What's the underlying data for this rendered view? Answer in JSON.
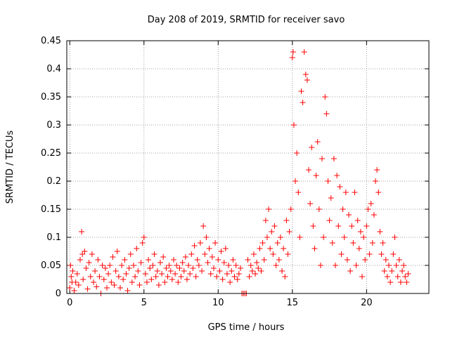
{
  "chart_data": {
    "type": "scatter",
    "title": "Day 208 of 2019, SRMTID for receiver savo",
    "xlabel": "GPS time / hours",
    "ylabel": "SRMTID / TECUs",
    "xlim": [
      -0.2,
      24.2
    ],
    "ylim": [
      0,
      0.45
    ],
    "xticks": [
      0,
      5,
      10,
      15,
      20
    ],
    "xtick_labels": [
      "0",
      "5",
      "10",
      "15",
      "20"
    ],
    "yticks": [
      0,
      0.05,
      0.1,
      0.15,
      0.2,
      0.25,
      0.3,
      0.35,
      0.4,
      0.45
    ],
    "ytick_labels": [
      "0",
      "0.05",
      "0.1",
      "0.15",
      "0.2",
      "0.25",
      "0.3",
      "0.35",
      "0.4",
      "0.45"
    ],
    "grid": true,
    "marker": "+",
    "marker_color": "#ff0000",
    "series": [
      {
        "name": "SRMTID",
        "points": [
          [
            0.0,
            0.01
          ],
          [
            0.05,
            0.05
          ],
          [
            0.1,
            0.03
          ],
          [
            0.15,
            0.02
          ],
          [
            0.2,
            0.04
          ],
          [
            0.3,
            0.005
          ],
          [
            0.4,
            0.02
          ],
          [
            0.5,
            0.035
          ],
          [
            0.6,
            0.015
          ],
          [
            0.7,
            0.06
          ],
          [
            0.8,
            0.11
          ],
          [
            0.85,
            0.07
          ],
          [
            0.9,
            0.025
          ],
          [
            1.0,
            0.075
          ],
          [
            1.1,
            0.045
          ],
          [
            1.2,
            0.008
          ],
          [
            1.3,
            0.055
          ],
          [
            1.4,
            0.03
          ],
          [
            1.5,
            0.07
          ],
          [
            1.6,
            0.02
          ],
          [
            1.7,
            0.04
          ],
          [
            1.8,
            0.012
          ],
          [
            1.9,
            0.06
          ],
          [
            2.0,
            0.03
          ],
          [
            2.1,
            0.0
          ],
          [
            2.2,
            0.05
          ],
          [
            2.3,
            0.025
          ],
          [
            2.4,
            0.045
          ],
          [
            2.5,
            0.01
          ],
          [
            2.6,
            0.035
          ],
          [
            2.7,
            0.05
          ],
          [
            2.8,
            0.02
          ],
          [
            2.9,
            0.065
          ],
          [
            3.0,
            0.015
          ],
          [
            3.1,
            0.04
          ],
          [
            3.2,
            0.075
          ],
          [
            3.3,
            0.03
          ],
          [
            3.4,
            0.01
          ],
          [
            3.5,
            0.05
          ],
          [
            3.6,
            0.025
          ],
          [
            3.7,
            0.06
          ],
          [
            3.8,
            0.035
          ],
          [
            3.9,
            0.005
          ],
          [
            4.0,
            0.045
          ],
          [
            4.1,
            0.07
          ],
          [
            4.2,
            0.02
          ],
          [
            4.3,
            0.05
          ],
          [
            4.4,
            0.03
          ],
          [
            4.5,
            0.08
          ],
          [
            4.6,
            0.04
          ],
          [
            4.7,
            0.015
          ],
          [
            4.8,
            0.055
          ],
          [
            4.9,
            0.09
          ],
          [
            5.0,
            0.1
          ],
          [
            5.1,
            0.035
          ],
          [
            5.2,
            0.02
          ],
          [
            5.3,
            0.06
          ],
          [
            5.4,
            0.045
          ],
          [
            5.5,
            0.025
          ],
          [
            5.6,
            0.05
          ],
          [
            5.7,
            0.07
          ],
          [
            5.8,
            0.03
          ],
          [
            5.9,
            0.04
          ],
          [
            6.0,
            0.015
          ],
          [
            6.1,
            0.055
          ],
          [
            6.2,
            0.035
          ],
          [
            6.3,
            0.065
          ],
          [
            6.4,
            0.02
          ],
          [
            6.5,
            0.045
          ],
          [
            6.6,
            0.03
          ],
          [
            6.7,
            0.05
          ],
          [
            6.8,
            0.04
          ],
          [
            6.9,
            0.025
          ],
          [
            7.0,
            0.06
          ],
          [
            7.1,
            0.035
          ],
          [
            7.2,
            0.05
          ],
          [
            7.3,
            0.02
          ],
          [
            7.4,
            0.045
          ],
          [
            7.5,
            0.03
          ],
          [
            7.6,
            0.055
          ],
          [
            7.7,
            0.04
          ],
          [
            7.8,
            0.065
          ],
          [
            7.9,
            0.025
          ],
          [
            8.0,
            0.05
          ],
          [
            8.1,
            0.035
          ],
          [
            8.2,
            0.07
          ],
          [
            8.3,
            0.045
          ],
          [
            8.4,
            0.085
          ],
          [
            8.5,
            0.03
          ],
          [
            8.6,
            0.06
          ],
          [
            8.7,
            0.05
          ],
          [
            8.8,
            0.09
          ],
          [
            8.9,
            0.04
          ],
          [
            9.0,
            0.12
          ],
          [
            9.1,
            0.07
          ],
          [
            9.2,
            0.1
          ],
          [
            9.3,
            0.055
          ],
          [
            9.4,
            0.08
          ],
          [
            9.5,
            0.035
          ],
          [
            9.6,
            0.065
          ],
          [
            9.7,
            0.045
          ],
          [
            9.8,
            0.09
          ],
          [
            9.9,
            0.03
          ],
          [
            10.0,
            0.06
          ],
          [
            10.1,
            0.04
          ],
          [
            10.2,
            0.075
          ],
          [
            10.3,
            0.025
          ],
          [
            10.4,
            0.055
          ],
          [
            10.5,
            0.08
          ],
          [
            10.6,
            0.035
          ],
          [
            10.7,
            0.05
          ],
          [
            10.8,
            0.02
          ],
          [
            10.9,
            0.04
          ],
          [
            11.0,
            0.06
          ],
          [
            11.1,
            0.03
          ],
          [
            11.2,
            0.05
          ],
          [
            11.3,
            0.025
          ],
          [
            11.4,
            0.035
          ],
          [
            11.5,
            0.045
          ],
          [
            11.6,
            0.0
          ],
          [
            11.7,
            0.0
          ],
          [
            11.8,
            0.0
          ],
          [
            11.9,
            0.0
          ],
          [
            12.0,
            0.06
          ],
          [
            12.1,
            0.03
          ],
          [
            12.2,
            0.05
          ],
          [
            12.3,
            0.04
          ],
          [
            12.4,
            0.07
          ],
          [
            12.5,
            0.035
          ],
          [
            12.6,
            0.055
          ],
          [
            12.7,
            0.045
          ],
          [
            12.8,
            0.08
          ],
          [
            12.9,
            0.04
          ],
          [
            13.0,
            0.09
          ],
          [
            13.1,
            0.06
          ],
          [
            13.2,
            0.13
          ],
          [
            13.3,
            0.1
          ],
          [
            13.4,
            0.15
          ],
          [
            13.5,
            0.08
          ],
          [
            13.6,
            0.11
          ],
          [
            13.7,
            0.07
          ],
          [
            13.8,
            0.12
          ],
          [
            13.9,
            0.05
          ],
          [
            14.0,
            0.09
          ],
          [
            14.1,
            0.06
          ],
          [
            14.2,
            0.1
          ],
          [
            14.3,
            0.04
          ],
          [
            14.4,
            0.08
          ],
          [
            14.5,
            0.03
          ],
          [
            14.6,
            0.13
          ],
          [
            14.7,
            0.07
          ],
          [
            14.8,
            0.11
          ],
          [
            14.9,
            0.15
          ],
          [
            15.0,
            0.42
          ],
          [
            15.05,
            0.43
          ],
          [
            15.1,
            0.3
          ],
          [
            15.2,
            0.2
          ],
          [
            15.3,
            0.25
          ],
          [
            15.4,
            0.18
          ],
          [
            15.5,
            0.1
          ],
          [
            15.6,
            0.36
          ],
          [
            15.7,
            0.34
          ],
          [
            15.8,
            0.43
          ],
          [
            15.9,
            0.39
          ],
          [
            16.0,
            0.38
          ],
          [
            16.1,
            0.22
          ],
          [
            16.2,
            0.16
          ],
          [
            16.3,
            0.26
          ],
          [
            16.4,
            0.12
          ],
          [
            16.5,
            0.08
          ],
          [
            16.6,
            0.21
          ],
          [
            16.7,
            0.27
          ],
          [
            16.8,
            0.15
          ],
          [
            16.9,
            0.05
          ],
          [
            17.0,
            0.24
          ],
          [
            17.1,
            0.1
          ],
          [
            17.2,
            0.35
          ],
          [
            17.3,
            0.32
          ],
          [
            17.4,
            0.2
          ],
          [
            17.5,
            0.13
          ],
          [
            17.6,
            0.17
          ],
          [
            17.7,
            0.09
          ],
          [
            17.8,
            0.24
          ],
          [
            17.9,
            0.05
          ],
          [
            18.0,
            0.21
          ],
          [
            18.1,
            0.12
          ],
          [
            18.2,
            0.19
          ],
          [
            18.3,
            0.07
          ],
          [
            18.4,
            0.15
          ],
          [
            18.5,
            0.1
          ],
          [
            18.6,
            0.18
          ],
          [
            18.7,
            0.06
          ],
          [
            18.8,
            0.14
          ],
          [
            18.9,
            0.04
          ],
          [
            19.0,
            0.12
          ],
          [
            19.1,
            0.09
          ],
          [
            19.2,
            0.18
          ],
          [
            19.3,
            0.05
          ],
          [
            19.4,
            0.13
          ],
          [
            19.5,
            0.08
          ],
          [
            19.6,
            0.11
          ],
          [
            19.7,
            0.03
          ],
          [
            19.8,
            0.1
          ],
          [
            19.9,
            0.06
          ],
          [
            20.0,
            0.12
          ],
          [
            20.1,
            0.15
          ],
          [
            20.2,
            0.07
          ],
          [
            20.3,
            0.16
          ],
          [
            20.4,
            0.09
          ],
          [
            20.5,
            0.14
          ],
          [
            20.6,
            0.2
          ],
          [
            20.7,
            0.22
          ],
          [
            20.8,
            0.18
          ],
          [
            20.9,
            0.11
          ],
          [
            21.0,
            0.07
          ],
          [
            21.1,
            0.09
          ],
          [
            21.2,
            0.04
          ],
          [
            21.3,
            0.06
          ],
          [
            21.4,
            0.03
          ],
          [
            21.5,
            0.05
          ],
          [
            21.6,
            0.02
          ],
          [
            21.7,
            0.04
          ],
          [
            21.8,
            0.07
          ],
          [
            21.9,
            0.1
          ],
          [
            22.0,
            0.05
          ],
          [
            22.1,
            0.03
          ],
          [
            22.2,
            0.06
          ],
          [
            22.3,
            0.02
          ],
          [
            22.4,
            0.04
          ],
          [
            22.5,
            0.05
          ],
          [
            22.6,
            0.03
          ],
          [
            22.7,
            0.02
          ],
          [
            22.8,
            0.035
          ]
        ]
      }
    ]
  }
}
